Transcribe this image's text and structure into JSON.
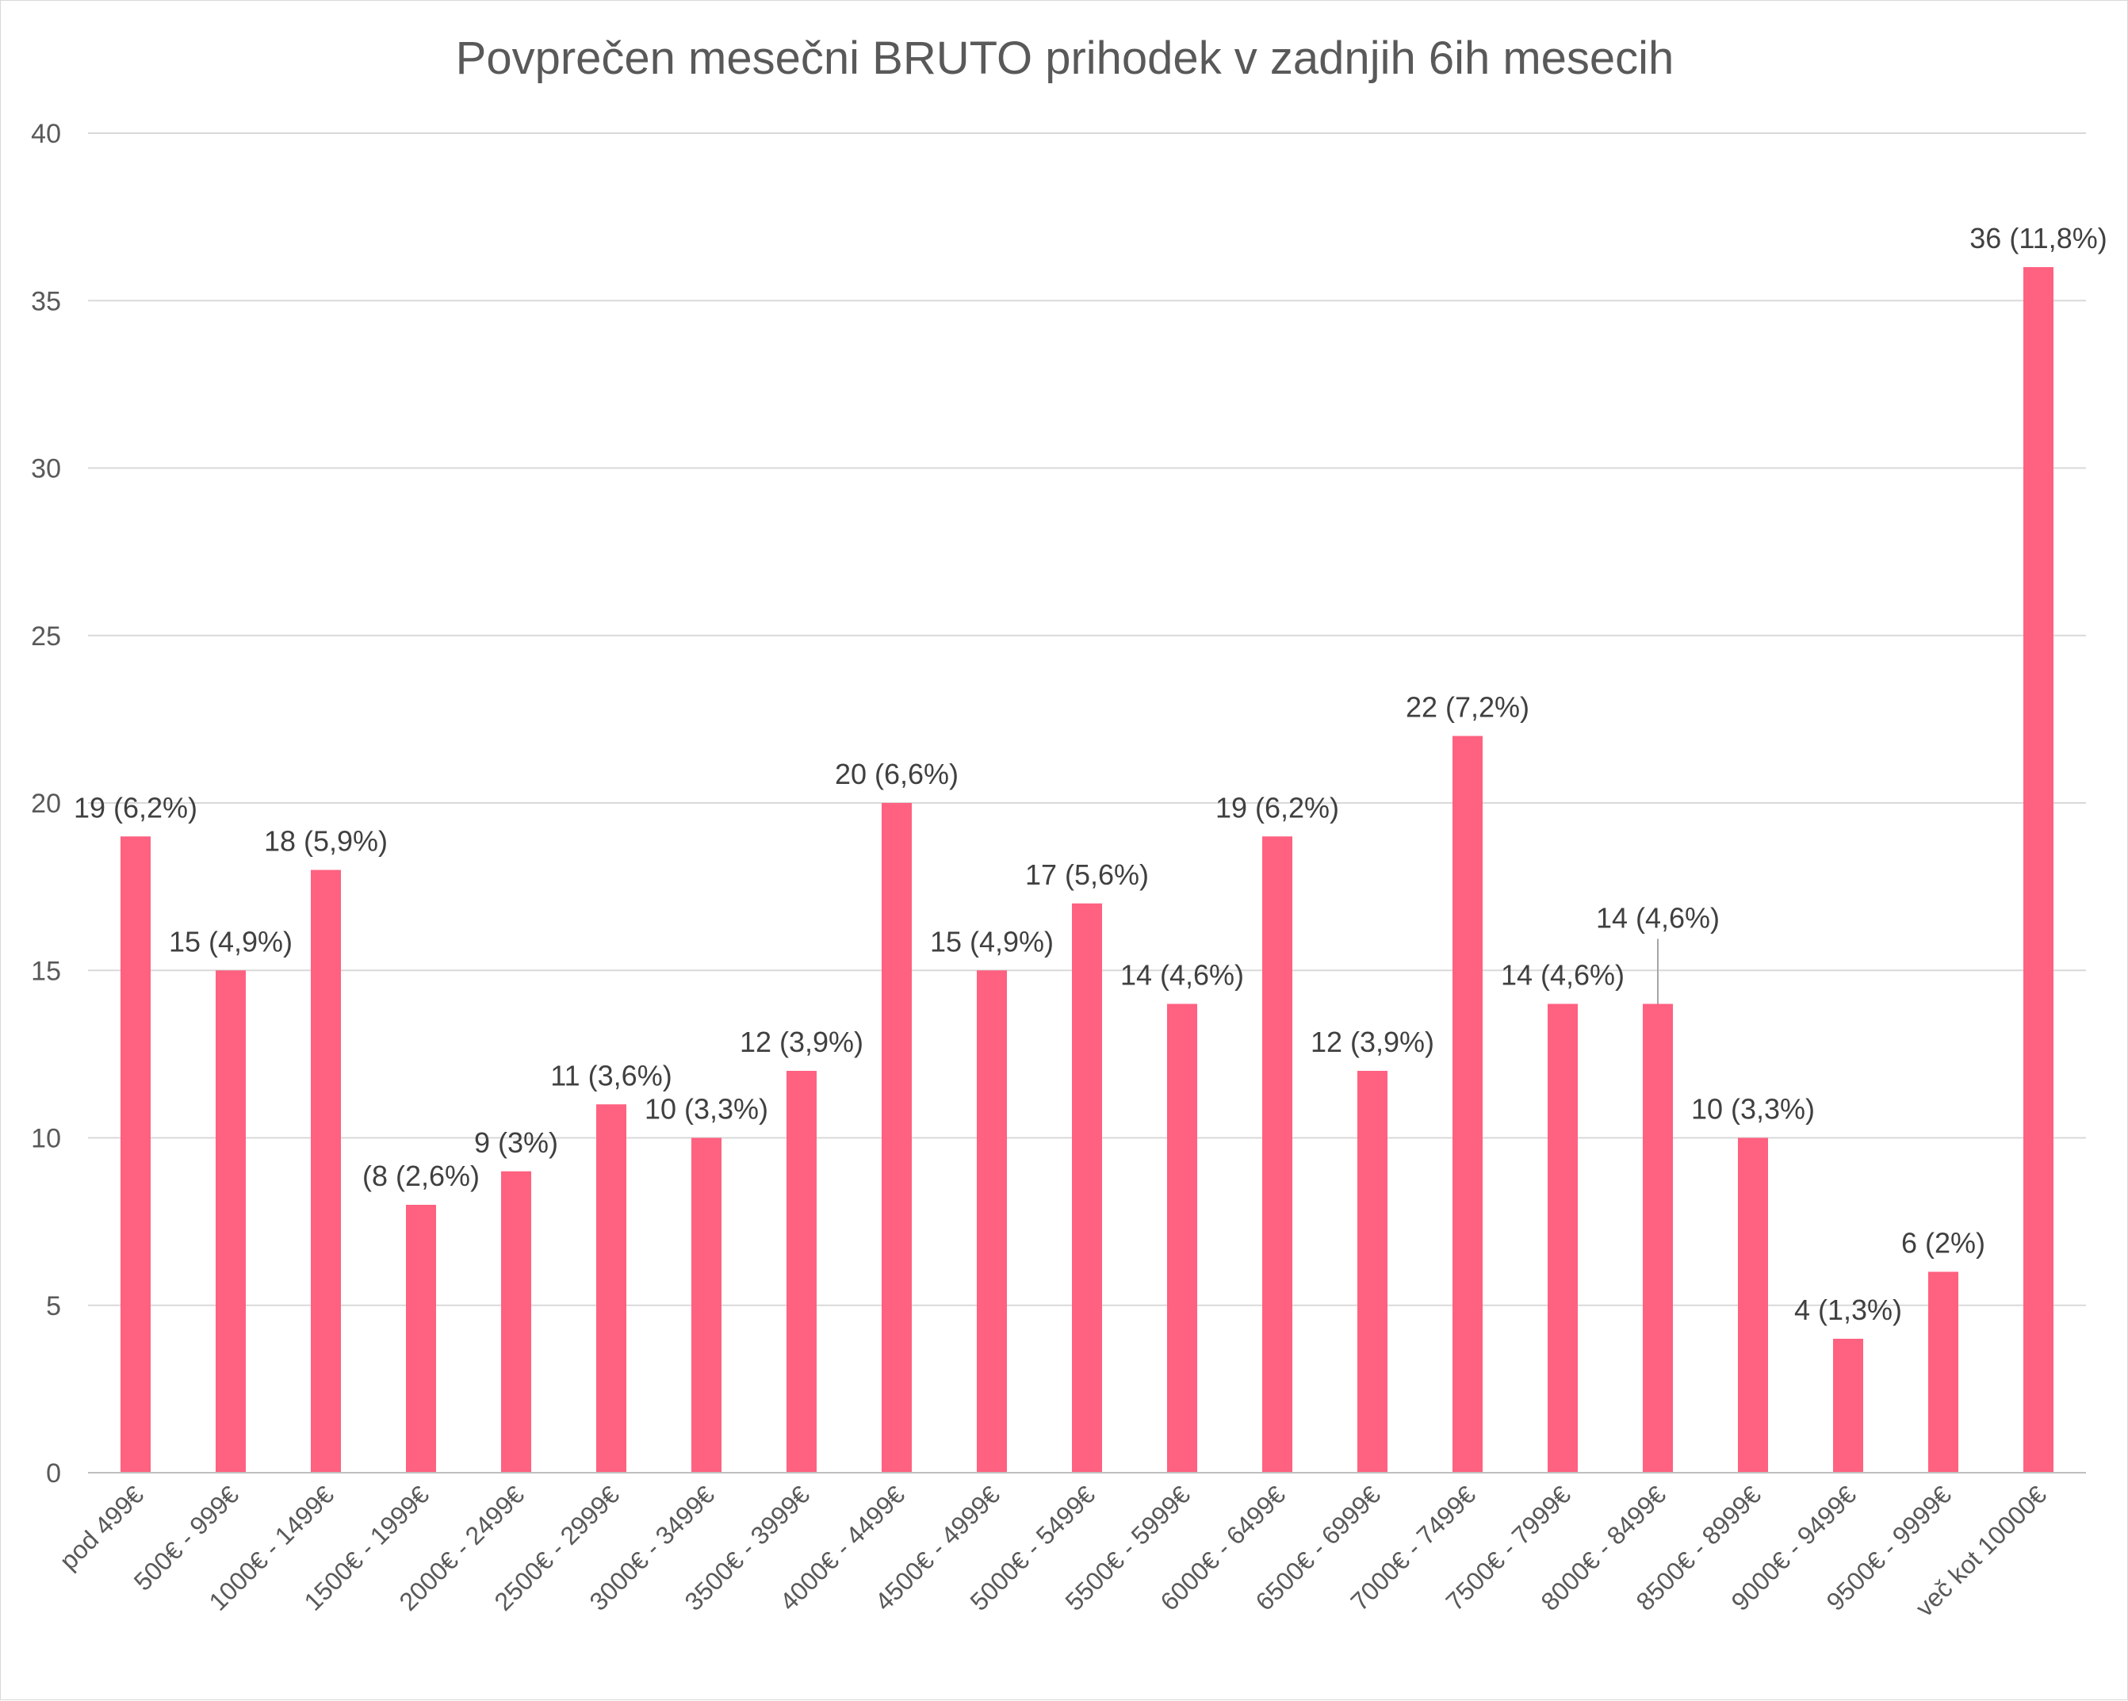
{
  "chart_data": {
    "type": "bar",
    "title": "Povprečen mesečni BRUTO prihodek v zadnjih 6ih mesecih",
    "xlabel": "",
    "ylabel": "",
    "ylim": [
      0,
      40
    ],
    "yticks": [
      0,
      5,
      10,
      15,
      20,
      25,
      30,
      35,
      40
    ],
    "grid": true,
    "bar_color": "#ff6180",
    "categories": [
      "pod 499€",
      "500€ - 999€",
      "1000€ - 1499€",
      "1500€ - 1999€",
      "2000€ - 2499€",
      "2500€ - 2999€",
      "3000€ - 3499€",
      "3500€ - 3999€",
      "4000€ - 4499€",
      "4500€ - 4999€",
      "5000€ - 5499€",
      "5500€ - 5999€",
      "6000€ - 6499€",
      "6500€ - 6999€",
      "7000€ - 7499€",
      "7500€ - 7999€",
      "8000€ - 8499€",
      "8500€ - 8999€",
      "9000€ - 9499€",
      "9500€ - 9999€",
      "več kot 10000€"
    ],
    "values": [
      19,
      15,
      18,
      8,
      9,
      11,
      10,
      12,
      20,
      15,
      17,
      14,
      19,
      12,
      22,
      14,
      14,
      10,
      4,
      6,
      36
    ],
    "data_labels": [
      "19 (6,2%)",
      "15 (4,9%)",
      "18 (5,9%)",
      "(8 (2,6%)",
      "9 (3%)",
      "11 (3,6%)",
      "10 (3,3%)",
      "12 (3,9%)",
      "20 (6,6%)",
      "15 (4,9%)",
      "17 (5,6%)",
      "14 (4,6%)",
      "19 (6,2%)",
      "12 (3,9%)",
      "22 (7,2%)",
      "14 (4,6%)",
      "14 (4,6%)",
      "10 (3,3%)",
      "4 (1,3%)",
      "6 (2%)",
      "36 (11,8%)"
    ]
  }
}
